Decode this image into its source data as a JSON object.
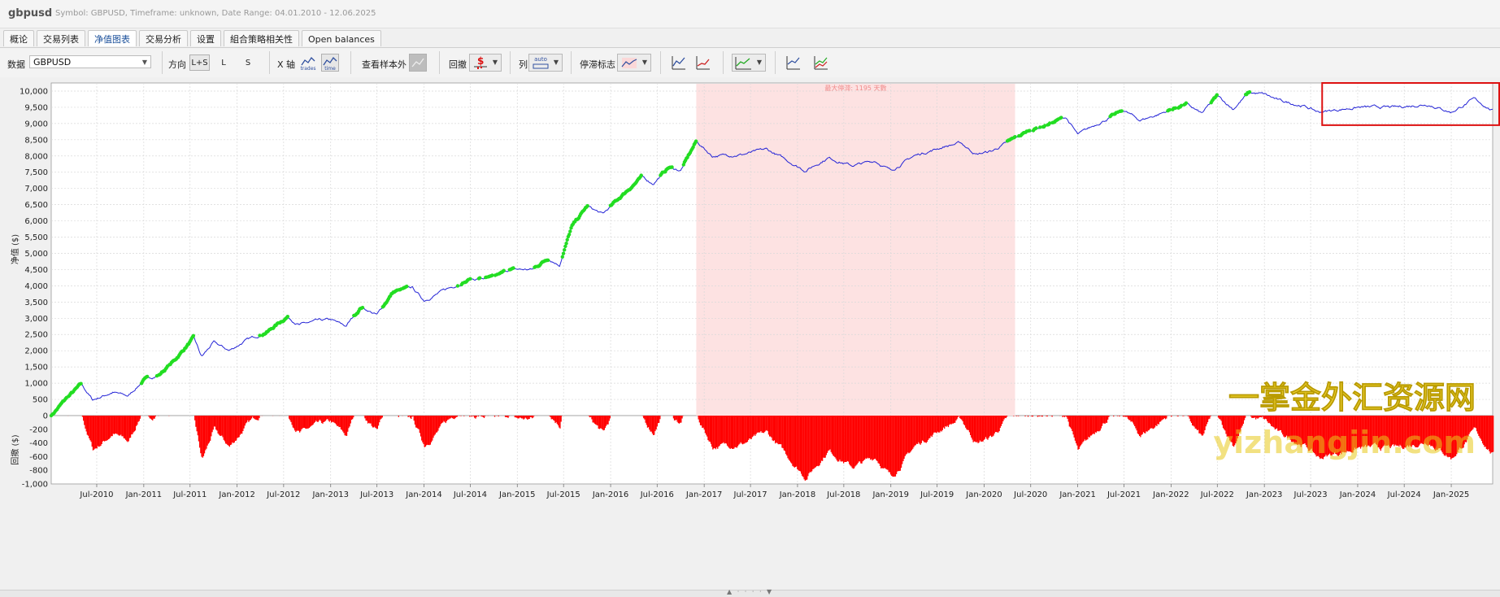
{
  "app": {
    "title": "gbpusd",
    "subtitle": "Symbol: GBPUSD, Timeframe: unknown, Date Range: 04.01.2010 - 12.06.2025"
  },
  "tabs": [
    {
      "label": "概论",
      "active": false
    },
    {
      "label": "交易列表",
      "active": false
    },
    {
      "label": "净值图表",
      "active": true
    },
    {
      "label": "交易分析",
      "active": false
    },
    {
      "label": "设置",
      "active": false
    },
    {
      "label": "組合策略相关性",
      "active": false
    },
    {
      "label": "Open balances",
      "active": false
    }
  ],
  "toolbar": {
    "data_label": "数据",
    "data_value": "GBPUSD",
    "direction_label": "方向",
    "direction_options": [
      "L+S",
      "L",
      "S"
    ],
    "direction_selected": "L+S",
    "xaxis_label": "X 轴",
    "xaxis_trades": "trades",
    "xaxis_time": "time",
    "out_of_sample_label": "查看样本外",
    "drawdown_label": "回撤",
    "column_label": "列",
    "column_auto": "auto",
    "stagnation_label": "停滞标志"
  },
  "chart_data": [
    {
      "type": "line",
      "name": "equity",
      "ylabel": "净值 ($)",
      "yticks": [
        500,
        1000,
        1500,
        2000,
        2500,
        3000,
        3500,
        4000,
        4500,
        5000,
        5500,
        6000,
        6500,
        7000,
        7500,
        8000,
        8500,
        9000,
        9500,
        10000
      ],
      "ytick_labels": [
        "500",
        "1,000",
        "1,500",
        "2,000",
        "2,500",
        "3,000",
        "3,500",
        "4,000",
        "4,500",
        "5,000",
        "5,500",
        "6,000",
        "6,500",
        "7,000",
        "7,500",
        "8,000",
        "8,500",
        "9,000",
        "9,500",
        "10,000"
      ],
      "ylim": [
        0,
        10250
      ],
      "xlim": [
        "2010-01-04",
        "2025-06-12"
      ],
      "grid": true,
      "line_color": "#2323d6",
      "new_high_color": "#22dd22",
      "stagnation": {
        "start": "2016-12-01",
        "end": "2020-05-01",
        "label": "最大停滞: 1195 天數",
        "color": "#fde2e2"
      },
      "highlight_box": {
        "start": "2023-08-15",
        "end": "2025-06-12",
        "ymin": 8950,
        "ymax": 10250,
        "color": "#dd1111"
      },
      "points": [
        [
          "2010-01-04",
          0
        ],
        [
          "2010-03-01",
          500
        ],
        [
          "2010-05-01",
          960
        ],
        [
          "2010-06-15",
          480
        ],
        [
          "2010-09-01",
          720
        ],
        [
          "2010-11-01",
          600
        ],
        [
          "2011-01-01",
          1100
        ],
        [
          "2011-03-01",
          1250
        ],
        [
          "2011-05-01",
          1700
        ],
        [
          "2011-07-15",
          2400
        ],
        [
          "2011-08-15",
          1800
        ],
        [
          "2011-10-01",
          2250
        ],
        [
          "2011-12-01",
          2000
        ],
        [
          "2012-02-01",
          2300
        ],
        [
          "2012-05-01",
          2600
        ],
        [
          "2012-07-15",
          3050
        ],
        [
          "2012-09-01",
          2800
        ],
        [
          "2012-11-01",
          2900
        ],
        [
          "2013-01-01",
          2950
        ],
        [
          "2013-03-01",
          2750
        ],
        [
          "2013-05-01",
          3350
        ],
        [
          "2013-07-01",
          3100
        ],
        [
          "2013-09-01",
          3800
        ],
        [
          "2013-11-15",
          3950
        ],
        [
          "2014-01-01",
          3550
        ],
        [
          "2014-04-01",
          3900
        ],
        [
          "2014-07-01",
          4200
        ],
        [
          "2014-10-01",
          4250
        ],
        [
          "2014-12-01",
          4500
        ],
        [
          "2015-03-01",
          4500
        ],
        [
          "2015-05-01",
          4850
        ],
        [
          "2015-06-15",
          4650
        ],
        [
          "2015-08-01",
          5800
        ],
        [
          "2015-10-01",
          6450
        ],
        [
          "2015-12-01",
          6200
        ],
        [
          "2016-03-01",
          6900
        ],
        [
          "2016-05-01",
          7350
        ],
        [
          "2016-06-15",
          7150
        ],
        [
          "2016-08-15",
          7650
        ],
        [
          "2016-10-01",
          7550
        ],
        [
          "2016-12-01",
          8450
        ],
        [
          "2017-02-01",
          8000
        ],
        [
          "2017-06-01",
          8050
        ],
        [
          "2017-09-01",
          8200
        ],
        [
          "2017-11-01",
          7950
        ],
        [
          "2018-02-01",
          7550
        ],
        [
          "2018-05-01",
          7950
        ],
        [
          "2018-08-01",
          7700
        ],
        [
          "2018-11-01",
          7850
        ],
        [
          "2019-01-01",
          7550
        ],
        [
          "2019-04-01",
          8000
        ],
        [
          "2019-08-01",
          8300
        ],
        [
          "2019-10-01",
          8400
        ],
        [
          "2019-12-01",
          8050
        ],
        [
          "2020-02-01",
          8150
        ],
        [
          "2020-05-01",
          8550
        ],
        [
          "2020-07-01",
          8800
        ],
        [
          "2020-09-01",
          8950
        ],
        [
          "2020-11-15",
          9200
        ],
        [
          "2021-01-01",
          8650
        ],
        [
          "2021-04-01",
          9050
        ],
        [
          "2021-07-01",
          9400
        ],
        [
          "2021-09-01",
          9100
        ],
        [
          "2021-11-01",
          9250
        ],
        [
          "2022-03-01",
          9600
        ],
        [
          "2022-05-01",
          9300
        ],
        [
          "2022-07-01",
          9850
        ],
        [
          "2022-09-01",
          9450
        ],
        [
          "2022-11-01",
          9950
        ],
        [
          "2023-01-01",
          9900
        ],
        [
          "2023-03-01",
          9700
        ],
        [
          "2023-06-01",
          9550
        ],
        [
          "2023-08-01",
          9350
        ],
        [
          "2024-01-01",
          9500
        ],
        [
          "2024-06-01",
          9500
        ],
        [
          "2024-10-01",
          9600
        ],
        [
          "2025-01-01",
          9350
        ],
        [
          "2025-04-01",
          9750
        ],
        [
          "2025-06-12",
          9400
        ]
      ]
    },
    {
      "type": "bar",
      "name": "drawdown",
      "ylabel": "回撤 ($)",
      "yticks": [
        0,
        -200,
        -400,
        -600,
        -800,
        -1000
      ],
      "ytick_labels": [
        "0",
        "-200",
        "-400",
        "-600",
        "-800",
        "-1,000"
      ],
      "ylim": [
        -1000,
        0
      ],
      "bar_color": "#ff0000",
      "xtick_labels": [
        "Jul-2010",
        "Jan-2011",
        "Jul-2011",
        "Jan-2012",
        "Jul-2012",
        "Jan-2013",
        "Jul-2013",
        "Jan-2014",
        "Jul-2014",
        "Jan-2015",
        "Jul-2015",
        "Jan-2016",
        "Jul-2016",
        "Jan-2017",
        "Jul-2017",
        "Jan-2018",
        "Jul-2018",
        "Jan-2019",
        "Jul-2019",
        "Jan-2020",
        "Jul-2020",
        "Jan-2021",
        "Jul-2021",
        "Jan-2022",
        "Jul-2022",
        "Jan-2023",
        "Jul-2023",
        "Jan-2024",
        "Jul-2024",
        "Jan-2025"
      ],
      "xtick_dates": [
        "2010-07-01",
        "2011-01-01",
        "2011-07-01",
        "2012-01-01",
        "2012-07-01",
        "2013-01-01",
        "2013-07-01",
        "2014-01-01",
        "2014-07-01",
        "2015-01-01",
        "2015-07-01",
        "2016-01-01",
        "2016-07-01",
        "2017-01-01",
        "2017-07-01",
        "2018-01-01",
        "2018-07-01",
        "2019-01-01",
        "2019-07-01",
        "2020-01-01",
        "2020-07-01",
        "2021-01-01",
        "2021-07-01",
        "2022-01-01",
        "2022-07-01",
        "2023-01-01",
        "2023-07-01",
        "2024-01-01",
        "2024-07-01",
        "2025-01-01"
      ]
    }
  ],
  "watermark": {
    "line1": "一掌金外汇资源网",
    "line2": "yizhangjin.com"
  }
}
